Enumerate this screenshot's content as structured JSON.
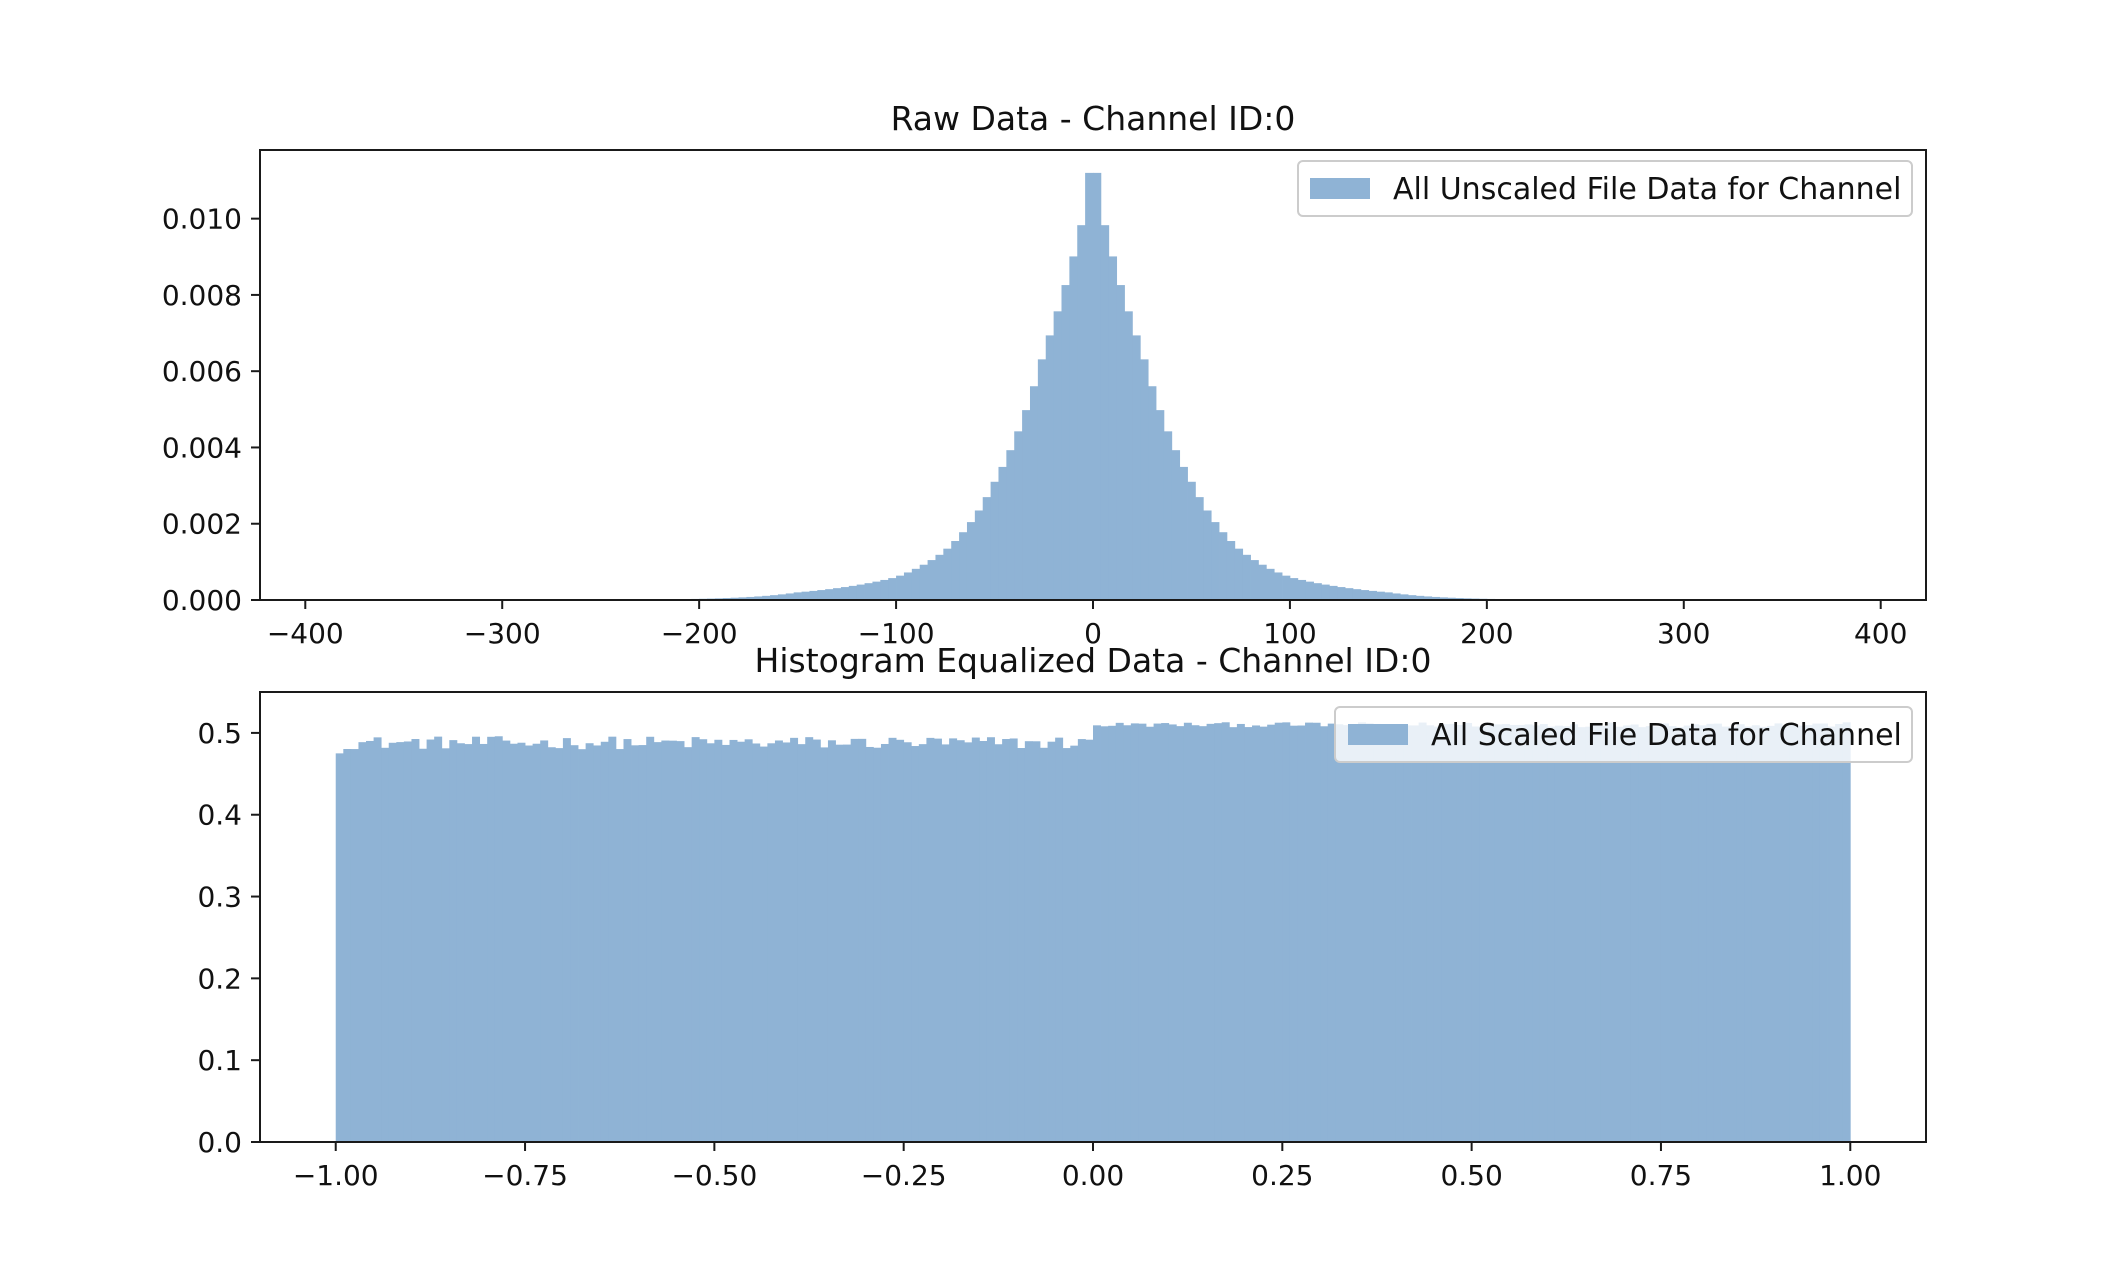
{
  "colors": {
    "bar_fill": "#8fb3d5",
    "axis": "#1a1a1a",
    "legend_border": "#cccccc",
    "background": "#ffffff"
  },
  "chart_data": [
    {
      "type": "bar",
      "title": "Raw Data - Channel ID:0",
      "xlabel": "",
      "ylabel": "",
      "xlim": [
        -423,
        423
      ],
      "ylim": [
        0,
        0.0118
      ],
      "xticks": [
        -400,
        -300,
        -200,
        -100,
        0,
        100,
        200,
        300,
        400
      ],
      "xtick_labels": [
        "−400",
        "−300",
        "−200",
        "−100",
        "0",
        "100",
        "200",
        "300",
        "400"
      ],
      "yticks": [
        0,
        0.002,
        0.004,
        0.006,
        0.008,
        0.01
      ],
      "ytick_labels": [
        "0.000",
        "0.002",
        "0.004",
        "0.006",
        "0.008",
        "0.010"
      ],
      "legend": {
        "label": "All Unscaled File Data for Channel",
        "placement": "top-right"
      },
      "grid": false,
      "series": [
        {
          "name": "All Unscaled File Data for Channel",
          "distribution": "histogram",
          "bin_range": [
            -400,
            400
          ],
          "bin_width": 4,
          "peak_x": 0,
          "peak_density": 0.0112,
          "shape": "laplace-like, scale ~32",
          "density_at": [
            [
              -200,
              3e-05
            ],
            [
              -150,
              0.0002
            ],
            [
              -100,
              0.0006
            ],
            [
              -75,
              0.0013
            ],
            [
              -50,
              0.0031
            ],
            [
              -25,
              0.0065
            ],
            [
              0,
              0.0112
            ],
            [
              25,
              0.0065
            ],
            [
              50,
              0.0031
            ],
            [
              75,
              0.0013
            ],
            [
              100,
              0.0006
            ],
            [
              150,
              0.0002
            ],
            [
              200,
              3e-05
            ]
          ]
        }
      ]
    },
    {
      "type": "bar",
      "title": "Histogram Equalized Data - Channel ID:0",
      "xlabel": "",
      "ylabel": "",
      "xlim": [
        -1.1,
        1.1
      ],
      "ylim": [
        0,
        0.55
      ],
      "xticks": [
        -1,
        -0.75,
        -0.5,
        -0.25,
        0,
        0.25,
        0.5,
        0.75,
        1
      ],
      "xtick_labels": [
        "−1.00",
        "−0.75",
        "−0.50",
        "−0.25",
        "0.00",
        "0.25",
        "0.50",
        "0.75",
        "1.00"
      ],
      "yticks": [
        0,
        0.1,
        0.2,
        0.3,
        0.4,
        0.5
      ],
      "ytick_labels": [
        "0.0",
        "0.1",
        "0.2",
        "0.3",
        "0.4",
        "0.5"
      ],
      "legend": {
        "label": "All Scaled File Data for Channel",
        "placement": "top-right"
      },
      "grid": false,
      "series": [
        {
          "name": "All Scaled File Data for Channel",
          "distribution": "histogram",
          "bin_range": [
            -1.0,
            1.0
          ],
          "bin_width": 0.01,
          "density_left_of_zero": 0.488,
          "density_right_of_zero": 0.51,
          "first_bin_density": 0.475
        }
      ]
    }
  ]
}
